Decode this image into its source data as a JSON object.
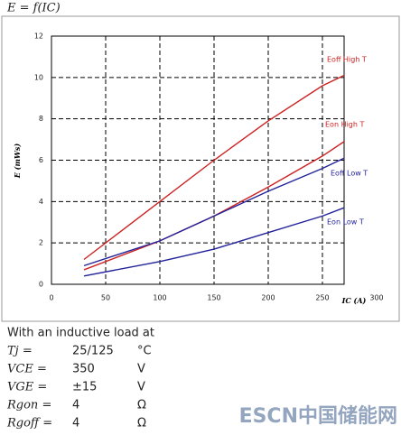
{
  "chart_data": {
    "type": "line",
    "title": "E = f(IC)",
    "x_label": "IC (A)",
    "y_label": "E (mWs)",
    "x": [
      30,
      100,
      150,
      200,
      250,
      270
    ],
    "series": [
      {
        "name": "Eoff High T",
        "color": "#cc2222",
        "values": [
          1.2,
          4.0,
          6.0,
          7.9,
          9.6,
          10.1
        ]
      },
      {
        "name": "Eon High T",
        "color": "#cc2222",
        "values": [
          0.7,
          2.1,
          3.3,
          4.7,
          6.2,
          6.9
        ]
      },
      {
        "name": "Eoff Low T",
        "color": "#22229a",
        "values": [
          0.9,
          2.1,
          3.3,
          4.5,
          5.6,
          6.1
        ]
      },
      {
        "name": "Eon Low T",
        "color": "#22229a",
        "values": [
          0.4,
          1.1,
          1.7,
          2.5,
          3.3,
          3.7
        ]
      }
    ],
    "xlim": [
      0,
      270
    ],
    "xticks": [
      0,
      50,
      100,
      150,
      200,
      250,
      300
    ],
    "ylim": [
      0,
      12
    ],
    "yticks": [
      0,
      2,
      4,
      6,
      8,
      10,
      12
    ],
    "grid": true
  },
  "conditions": {
    "heading": "With an inductive load at",
    "rows": [
      {
        "symbol": "Tj =",
        "value": "25/125",
        "unit": "°C"
      },
      {
        "symbol": "VCE =",
        "value": "350",
        "unit": "V"
      },
      {
        "symbol": "VGE =",
        "value": "±15",
        "unit": "V"
      },
      {
        "symbol": "Rgon =",
        "value": "4",
        "unit": "Ω"
      },
      {
        "symbol": "Rgoff =",
        "value": "4",
        "unit": "Ω"
      }
    ]
  },
  "watermark": "ESCN中国储能网"
}
